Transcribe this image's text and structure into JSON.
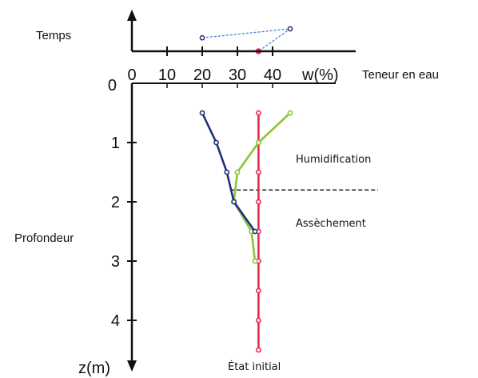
{
  "chart_data": {
    "type": "line",
    "time_axis_label": "Temps",
    "x_axis": {
      "unit_label": "w(%)",
      "title": "Teneur en eau",
      "ticks": [
        0,
        10,
        20,
        30,
        40
      ]
    },
    "y_axis": {
      "title": "Profondeur",
      "unit_label": "z(m)",
      "ticks": [
        0,
        1,
        2,
        3,
        4
      ]
    },
    "time_series": {
      "points": [
        {
          "w": 20,
          "t": 0.6
        },
        {
          "w": 45,
          "t": 1.0
        },
        {
          "w": 36,
          "t": 0.0
        }
      ],
      "color": "#4a7fd6"
    },
    "series": [
      {
        "color": "#e8294d",
        "points": [
          {
            "w": 36,
            "z": 0.5
          },
          {
            "w": 36,
            "z": 1.0
          },
          {
            "w": 36,
            "z": 1.5
          },
          {
            "w": 36,
            "z": 2.0
          },
          {
            "w": 36,
            "z": 2.5
          },
          {
            "w": 36,
            "z": 3.0
          },
          {
            "w": 36,
            "z": 3.5
          },
          {
            "w": 36,
            "z": 4.0
          },
          {
            "w": 36,
            "z": 4.5
          }
        ]
      },
      {
        "color": "#8ac43c",
        "points": [
          {
            "w": 45,
            "z": 0.5
          },
          {
            "w": 36,
            "z": 1.0
          },
          {
            "w": 30,
            "z": 1.5
          },
          {
            "w": 29,
            "z": 2.0
          },
          {
            "w": 34,
            "z": 2.5
          },
          {
            "w": 35,
            "z": 3.0
          }
        ]
      },
      {
        "color": "#1e2f78",
        "points": [
          {
            "w": 20,
            "z": 0.5
          },
          {
            "w": 24,
            "z": 1.0
          },
          {
            "w": 27,
            "z": 1.5
          },
          {
            "w": 29,
            "z": 2.0
          },
          {
            "w": 35,
            "z": 2.5
          }
        ]
      }
    ],
    "boundary": {
      "z": 1.8,
      "w_from": 28,
      "w_to": 70
    },
    "annotations": {
      "humidification": "Humidification",
      "assechement": "Assèchement",
      "etat_initial": "État initial"
    }
  }
}
